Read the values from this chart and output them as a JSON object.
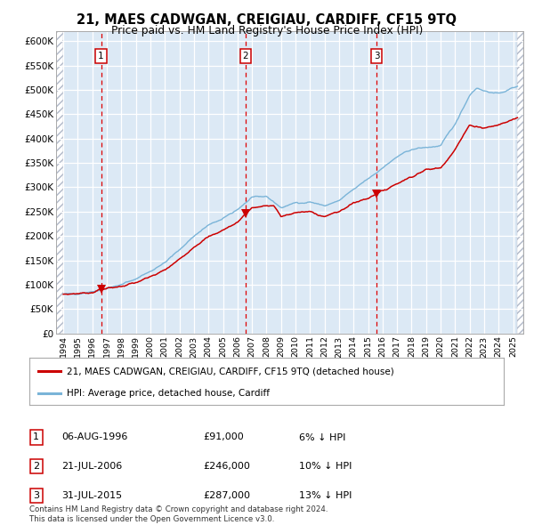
{
  "title": "21, MAES CADWGAN, CREIGIAU, CARDIFF, CF15 9TQ",
  "subtitle": "Price paid vs. HM Land Registry's House Price Index (HPI)",
  "legend_line1_text": "21, MAES CADWGAN, CREIGIAU, CARDIFF, CF15 9TQ (detached house)",
  "legend_line2": "HPI: Average price, detached house, Cardiff",
  "footnote": "Contains HM Land Registry data © Crown copyright and database right 2024.\nThis data is licensed under the Open Government Licence v3.0.",
  "sale1_date": "06-AUG-1996",
  "sale1_price": "£91,000",
  "sale1_hpi": "6% ↓ HPI",
  "sale2_date": "21-JUL-2006",
  "sale2_price": "£246,000",
  "sale2_hpi": "10% ↓ HPI",
  "sale3_date": "31-JUL-2015",
  "sale3_price": "£287,000",
  "sale3_hpi": "13% ↓ HPI",
  "sale1_x": 1996.6,
  "sale1_y": 91000,
  "sale2_x": 2006.55,
  "sale2_y": 246000,
  "sale3_x": 2015.58,
  "sale3_y": 287000,
  "hpi_color": "#7ab4d8",
  "price_color": "#cc0000",
  "bg_color": "#dce9f5",
  "grid_color": "#ffffff",
  "ylim": [
    0,
    620000
  ],
  "xlim_start": 1993.5,
  "xlim_end": 2025.7,
  "hpi_anchors_x": [
    1994.0,
    1995.0,
    1996.0,
    1997.0,
    1998.0,
    1999.0,
    2000.0,
    2001.0,
    2002.0,
    2003.0,
    2004.0,
    2005.0,
    2006.0,
    2007.0,
    2008.0,
    2009.0,
    2010.0,
    2011.0,
    2012.0,
    2013.0,
    2014.0,
    2015.0,
    2016.0,
    2017.0,
    2018.0,
    2019.0,
    2020.0,
    2021.0,
    2022.0,
    2022.5,
    2023.0,
    2024.0,
    2025.3
  ],
  "hpi_anchors_y": [
    80000,
    82000,
    86000,
    93000,
    100000,
    112000,
    128000,
    145000,
    172000,
    200000,
    222000,
    235000,
    255000,
    278000,
    282000,
    258000,
    268000,
    270000,
    262000,
    272000,
    295000,
    318000,
    340000,
    362000,
    378000,
    382000,
    385000,
    430000,
    490000,
    505000,
    498000,
    492000,
    508000
  ],
  "prop_anchors_x": [
    1994.0,
    1995.0,
    1996.0,
    1996.6,
    1997.0,
    1998.0,
    1999.0,
    2000.0,
    2001.0,
    2002.0,
    2003.0,
    2004.0,
    2005.0,
    2006.0,
    2006.55,
    2007.0,
    2008.0,
    2008.5,
    2009.0,
    2010.0,
    2011.0,
    2012.0,
    2013.0,
    2014.0,
    2015.0,
    2015.58,
    2016.0,
    2017.0,
    2018.0,
    2019.0,
    2020.0,
    2021.0,
    2022.0,
    2023.0,
    2024.0,
    2025.3
  ],
  "prop_anchors_y": [
    80000,
    82000,
    84000,
    91000,
    92000,
    97000,
    104000,
    116000,
    130000,
    152000,
    178000,
    198000,
    212000,
    228000,
    246000,
    258000,
    262000,
    262000,
    240000,
    248000,
    250000,
    240000,
    250000,
    268000,
    278000,
    287000,
    292000,
    308000,
    322000,
    336000,
    340000,
    378000,
    428000,
    422000,
    428000,
    443000
  ]
}
